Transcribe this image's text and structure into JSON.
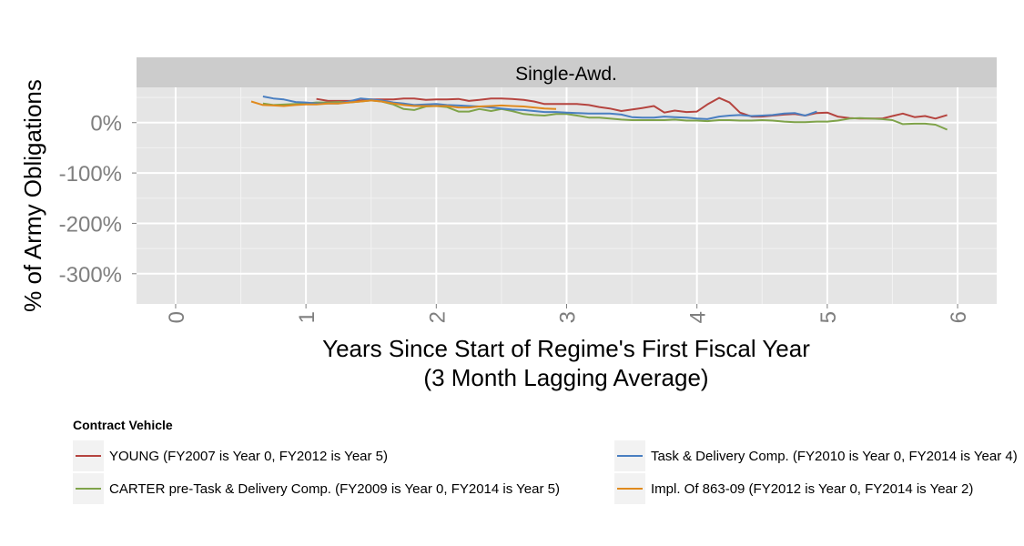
{
  "chart_data": {
    "type": "line",
    "facet_title": "Single-Awd.",
    "xlabel": "Years Since Start of Regime's First Fiscal Year",
    "xlabel_line2": "(3 Month Lagging Average)",
    "ylabel": "% of Army Obligations",
    "xlim": [
      -0.3,
      6.3
    ],
    "ylim": [
      -360,
      70
    ],
    "x_ticks": [
      0,
      1,
      2,
      3,
      4,
      5,
      6
    ],
    "x_tick_labels": [
      "0",
      "1",
      "2",
      "3",
      "4",
      "5",
      "6"
    ],
    "y_ticks": [
      -300,
      -200,
      -100,
      0
    ],
    "y_tick_labels": [
      "-300%",
      "-200%",
      "-100%",
      "0%"
    ],
    "grid": true,
    "legend_title": "Contract Vehicle",
    "legend_position": "bottom",
    "series": [
      {
        "name": "YOUNG (FY2007 is Year 0, FY2012 is Year 5)",
        "color": "#b5443f",
        "points": [
          [
            1.08,
            47
          ],
          [
            1.17,
            43
          ],
          [
            1.25,
            43
          ],
          [
            1.33,
            43
          ],
          [
            1.42,
            44
          ],
          [
            1.5,
            46
          ],
          [
            1.58,
            46
          ],
          [
            1.67,
            46
          ],
          [
            1.75,
            48
          ],
          [
            1.83,
            48
          ],
          [
            1.92,
            45
          ],
          [
            2.0,
            46
          ],
          [
            2.08,
            46
          ],
          [
            2.17,
            47
          ],
          [
            2.25,
            43
          ],
          [
            2.33,
            45
          ],
          [
            2.42,
            48
          ],
          [
            2.5,
            48
          ],
          [
            2.58,
            47
          ],
          [
            2.67,
            45
          ],
          [
            2.75,
            42
          ],
          [
            2.83,
            37
          ],
          [
            2.92,
            37
          ],
          [
            3.0,
            37
          ],
          [
            3.08,
            37
          ],
          [
            3.17,
            35
          ],
          [
            3.25,
            31
          ],
          [
            3.33,
            28
          ],
          [
            3.42,
            23
          ],
          [
            3.5,
            26
          ],
          [
            3.58,
            29
          ],
          [
            3.67,
            33
          ],
          [
            3.75,
            20
          ],
          [
            3.83,
            24
          ],
          [
            3.92,
            21
          ],
          [
            4.0,
            22
          ],
          [
            4.08,
            36
          ],
          [
            4.17,
            49
          ],
          [
            4.25,
            40
          ],
          [
            4.33,
            20
          ],
          [
            4.42,
            12
          ],
          [
            4.5,
            12
          ],
          [
            4.58,
            14
          ],
          [
            4.67,
            16
          ],
          [
            4.75,
            17
          ],
          [
            4.83,
            14
          ],
          [
            4.92,
            19
          ],
          [
            5.0,
            20
          ],
          [
            5.08,
            12
          ],
          [
            5.17,
            9
          ],
          [
            5.25,
            8
          ],
          [
            5.33,
            8
          ],
          [
            5.42,
            8
          ],
          [
            5.5,
            13
          ],
          [
            5.58,
            18
          ],
          [
            5.67,
            11
          ],
          [
            5.75,
            13
          ],
          [
            5.83,
            8
          ],
          [
            5.92,
            15
          ]
        ]
      },
      {
        "name": "CARTER pre-Task & Delivery Comp. (FY2009 is Year 0, FY2014 is Year 5)",
        "color": "#7fa34a",
        "points": [
          [
            0.67,
            38
          ],
          [
            0.75,
            35
          ],
          [
            1.0,
            38
          ],
          [
            1.08,
            40
          ],
          [
            1.17,
            40
          ],
          [
            1.25,
            41
          ],
          [
            1.33,
            40
          ],
          [
            1.42,
            42
          ],
          [
            1.5,
            44
          ],
          [
            1.58,
            42
          ],
          [
            1.67,
            36
          ],
          [
            1.75,
            27
          ],
          [
            1.83,
            25
          ],
          [
            1.92,
            32
          ],
          [
            2.0,
            33
          ],
          [
            2.08,
            31
          ],
          [
            2.17,
            22
          ],
          [
            2.25,
            22
          ],
          [
            2.33,
            27
          ],
          [
            2.42,
            23
          ],
          [
            2.5,
            27
          ],
          [
            2.58,
            23
          ],
          [
            2.67,
            17
          ],
          [
            2.75,
            15
          ],
          [
            2.83,
            14
          ],
          [
            2.92,
            17
          ],
          [
            3.0,
            17
          ],
          [
            3.08,
            14
          ],
          [
            3.17,
            10
          ],
          [
            3.25,
            10
          ],
          [
            3.33,
            8
          ],
          [
            3.42,
            6
          ],
          [
            3.5,
            5
          ],
          [
            3.58,
            5
          ],
          [
            3.67,
            5
          ],
          [
            3.75,
            5
          ],
          [
            3.83,
            6
          ],
          [
            3.92,
            4
          ],
          [
            4.0,
            4
          ],
          [
            4.08,
            3
          ],
          [
            4.17,
            5
          ],
          [
            4.25,
            5
          ],
          [
            4.33,
            4
          ],
          [
            4.42,
            4
          ],
          [
            4.5,
            5
          ],
          [
            4.58,
            4
          ],
          [
            4.67,
            2
          ],
          [
            4.75,
            1
          ],
          [
            4.83,
            1
          ],
          [
            4.92,
            2
          ],
          [
            5.0,
            2
          ],
          [
            5.08,
            4
          ],
          [
            5.17,
            8
          ],
          [
            5.25,
            9
          ],
          [
            5.33,
            8
          ],
          [
            5.42,
            7
          ],
          [
            5.5,
            5
          ],
          [
            5.58,
            -3
          ],
          [
            5.67,
            -2
          ],
          [
            5.75,
            -2
          ],
          [
            5.83,
            -4
          ],
          [
            5.92,
            -14
          ]
        ]
      },
      {
        "name": "Task & Delivery Comp. (FY2010 is Year 0, FY2014 is Year 4)",
        "color": "#4a7fc1",
        "points": [
          [
            0.67,
            52
          ],
          [
            0.75,
            48
          ],
          [
            0.83,
            46
          ],
          [
            0.92,
            41
          ],
          [
            1.0,
            40
          ],
          [
            1.08,
            38
          ],
          [
            1.17,
            38
          ],
          [
            1.25,
            38
          ],
          [
            1.33,
            42
          ],
          [
            1.42,
            48
          ],
          [
            1.5,
            46
          ],
          [
            1.58,
            44
          ],
          [
            1.67,
            40
          ],
          [
            1.75,
            38
          ],
          [
            1.83,
            35
          ],
          [
            1.92,
            36
          ],
          [
            2.0,
            37
          ],
          [
            2.08,
            35
          ],
          [
            2.17,
            34
          ],
          [
            2.25,
            33
          ],
          [
            2.33,
            32
          ],
          [
            2.42,
            30
          ],
          [
            2.5,
            28
          ],
          [
            2.58,
            26
          ],
          [
            2.67,
            25
          ],
          [
            2.75,
            23
          ],
          [
            2.83,
            21
          ],
          [
            2.92,
            21
          ],
          [
            3.0,
            20
          ],
          [
            3.08,
            19
          ],
          [
            3.17,
            18
          ],
          [
            3.25,
            18
          ],
          [
            3.33,
            18
          ],
          [
            3.42,
            16
          ],
          [
            3.5,
            11
          ],
          [
            3.58,
            10
          ],
          [
            3.67,
            10
          ],
          [
            3.75,
            12
          ],
          [
            3.83,
            11
          ],
          [
            3.92,
            10
          ],
          [
            4.0,
            8
          ],
          [
            4.08,
            7
          ],
          [
            4.17,
            12
          ],
          [
            4.25,
            14
          ],
          [
            4.33,
            15
          ],
          [
            4.42,
            13
          ],
          [
            4.5,
            14
          ],
          [
            4.58,
            15
          ],
          [
            4.67,
            18
          ],
          [
            4.75,
            19
          ],
          [
            4.83,
            14
          ],
          [
            4.92,
            22
          ]
        ]
      },
      {
        "name": "Impl. Of 863-09 (FY2012 is Year 0, FY2014 is Year 2)",
        "color": "#e08a1e",
        "points": [
          [
            0.58,
            42
          ],
          [
            0.67,
            35
          ],
          [
            0.75,
            34
          ],
          [
            0.83,
            33
          ],
          [
            0.92,
            35
          ],
          [
            1.0,
            36
          ],
          [
            1.08,
            36
          ],
          [
            1.17,
            38
          ],
          [
            1.25,
            38
          ],
          [
            1.33,
            40
          ],
          [
            1.42,
            42
          ],
          [
            1.5,
            44
          ],
          [
            1.58,
            42
          ],
          [
            1.67,
            38
          ],
          [
            1.75,
            35
          ],
          [
            1.83,
            33
          ],
          [
            1.92,
            33
          ],
          [
            2.0,
            33
          ],
          [
            2.08,
            33
          ],
          [
            2.17,
            30
          ],
          [
            2.25,
            30
          ],
          [
            2.33,
            32
          ],
          [
            2.42,
            33
          ],
          [
            2.5,
            34
          ],
          [
            2.58,
            33
          ],
          [
            2.67,
            32
          ],
          [
            2.75,
            30
          ],
          [
            2.83,
            28
          ],
          [
            2.92,
            27
          ]
        ]
      }
    ]
  }
}
